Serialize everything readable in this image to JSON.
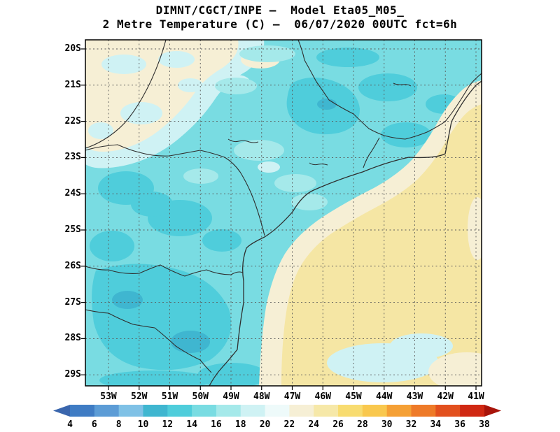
{
  "header": {
    "line1": "DIMNT/CGCT/INPE —  Model Eta05_M05_",
    "line2": "2 Metre Temperature (C) —  06/07/2020 00UTC fct=6h"
  },
  "map": {
    "lat_labels": [
      "20S",
      "21S",
      "22S",
      "23S",
      "24S",
      "25S",
      "26S",
      "27S",
      "28S",
      "29S"
    ],
    "lon_labels": [
      "53W",
      "52W",
      "51W",
      "50W",
      "49W",
      "48W",
      "47W",
      "46W",
      "45W",
      "44W",
      "43W",
      "42W",
      "41W"
    ]
  },
  "colorbar": {
    "tick_labels": [
      "4",
      "6",
      "8",
      "10",
      "12",
      "14",
      "16",
      "18",
      "20",
      "22",
      "24",
      "26",
      "28",
      "30",
      "32",
      "34",
      "36",
      "38"
    ],
    "segment_colors": [
      "#3f7cc4",
      "#5c9cd6",
      "#7fc1e6",
      "#3fb6d0",
      "#4fcddb",
      "#79dce2",
      "#a5e9ea",
      "#cff2f4",
      "#eefafa",
      "#f6efd5",
      "#f6e8a8",
      "#f8dc70",
      "#f9c84e",
      "#f5a035",
      "#ee7a28",
      "#e2501e",
      "#d02812"
    ],
    "arrow_left_color": "#3a66ad",
    "arrow_right_color": "#a8140a"
  },
  "palette": {
    "base": "#79dce2",
    "teal": "#4fcddb",
    "teal_dark": "#3fb6d0",
    "aqua_light": "#a5e9ea",
    "pale_blue": "#cff2f4",
    "near_white": "#eefafa",
    "cream": "#f6efd5",
    "pale_yellow": "#f5e6a4",
    "grid_line": "#5a5a5a",
    "border_line": "#2f2f2f",
    "frame": "#000000",
    "text": "#000000"
  },
  "chart_data": {
    "type": "heatmap",
    "title": "2 Metre Temperature (C)",
    "model": "Eta05_M05_",
    "source": "DIMNT/CGCT/INPE",
    "valid": "06/07/2020 00UTC fct=6h",
    "lat_ticks": [
      "20S",
      "21S",
      "22S",
      "23S",
      "24S",
      "25S",
      "26S",
      "27S",
      "28S",
      "29S"
    ],
    "lon_ticks": [
      "53W",
      "52W",
      "51W",
      "50W",
      "49W",
      "48W",
      "47W",
      "46W",
      "45W",
      "44W",
      "43W",
      "42W",
      "41W"
    ],
    "colorbar_values": [
      4,
      6,
      8,
      10,
      12,
      14,
      16,
      18,
      20,
      22,
      24,
      26,
      28,
      30,
      32,
      34,
      36,
      38
    ],
    "observed_field_C": {
      "land_interior": "14-16",
      "cool_land_patches": "12-14",
      "northwest_corner": "20-24",
      "ocean_southeast": "24-26",
      "coastal_transition_band": "22-24",
      "ocean_near_south_coast": "14-18",
      "ocean_cool_patch_bottom_center": "18-20"
    }
  }
}
